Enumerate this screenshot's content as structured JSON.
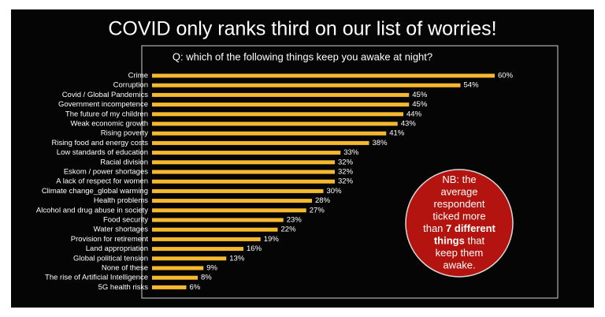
{
  "chart_data": {
    "type": "bar",
    "orientation": "horizontal",
    "title": "COVID only ranks third on our list of worries!",
    "subtitle": "Q: which of the following things keep you awake at night?",
    "categories": [
      "Crime",
      "Corruption",
      "Covid / Global Pandemics",
      "Government incompetence",
      "The future of my children",
      "Weak economic growth",
      "Rising poverty",
      "Rising food and energy costs",
      "Low standards of education",
      "Racial division",
      "Eskom / power shortages",
      "A lack of respect for women",
      "Climate change_global warming",
      "Health problems",
      "Alcohol and drug abuse in society",
      "Food security",
      "Water shortages",
      "Provision for retirement",
      "Land appropriation",
      "Global political tension",
      "None of these",
      "The rise of Artificial Intelligence",
      "5G health risks"
    ],
    "values": [
      60,
      54,
      45,
      45,
      44,
      43,
      41,
      38,
      33,
      32,
      32,
      32,
      30,
      28,
      27,
      23,
      22,
      19,
      16,
      13,
      9,
      8,
      6
    ],
    "value_labels": [
      "60%",
      "54%",
      "45%",
      "45%",
      "44%",
      "43%",
      "41%",
      "38%",
      "33%",
      "32%",
      "32%",
      "32%",
      "30%",
      "28%",
      "27%",
      "23%",
      "22%",
      "19%",
      "16%",
      "13%",
      "9%",
      "8%",
      "6%"
    ],
    "color": "#f5b82e",
    "annotation": {
      "color": "#b3140f",
      "lines": [
        [
          {
            "text": "NB: the"
          }
        ],
        [
          {
            "text": "average"
          }
        ],
        [
          {
            "text": "respondent"
          }
        ],
        [
          {
            "text": "ticked more"
          }
        ],
        [
          {
            "text": "than "
          },
          {
            "text": "7 different",
            "bold": true
          }
        ],
        [
          {
            "text": "things",
            "bold": true
          },
          {
            "text": " that"
          }
        ],
        [
          {
            "text": "keep them"
          }
        ],
        [
          {
            "text": "awake."
          }
        ]
      ]
    }
  }
}
